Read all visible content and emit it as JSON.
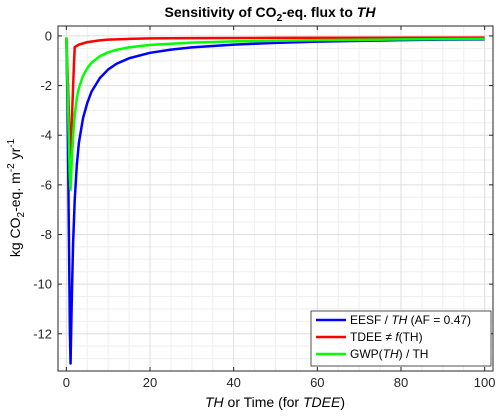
{
  "chart_data": {
    "type": "line",
    "title": "Sensitivity of CO₂-eq. flux to TH",
    "xlabel": "TH or Time (for TDEE)",
    "ylabel": "kg CO₂-eq. m⁻² yr⁻¹",
    "xlim": [
      -2,
      102
    ],
    "ylim": [
      -13.5,
      0.4
    ],
    "x_ticks": [
      0,
      20,
      40,
      60,
      80,
      100
    ],
    "y_ticks": [
      0,
      -2,
      -4,
      -6,
      -8,
      -10,
      -12
    ],
    "grid": true,
    "legend_position": "bottom-right",
    "series": [
      {
        "name": "EESF / TH (AF = 0.47)",
        "color": "#0000ff",
        "points": [
          [
            0,
            -0.1
          ],
          [
            0.3,
            -3.0
          ],
          [
            0.6,
            -8.0
          ],
          [
            0.85,
            -12.0
          ],
          [
            1,
            -13.2
          ],
          [
            1.3,
            -10.6
          ],
          [
            1.6,
            -8.4
          ],
          [
            2,
            -6.6
          ],
          [
            2.5,
            -5.2
          ],
          [
            3,
            -4.3
          ],
          [
            4,
            -3.3
          ],
          [
            5,
            -2.7
          ],
          [
            6,
            -2.25
          ],
          [
            8,
            -1.7
          ],
          [
            10,
            -1.35
          ],
          [
            12,
            -1.12
          ],
          [
            15,
            -0.9
          ],
          [
            20,
            -0.68
          ],
          [
            25,
            -0.55
          ],
          [
            30,
            -0.46
          ],
          [
            40,
            -0.35
          ],
          [
            50,
            -0.28
          ],
          [
            60,
            -0.23
          ],
          [
            70,
            -0.2
          ],
          [
            80,
            -0.17
          ],
          [
            90,
            -0.15
          ],
          [
            100,
            -0.14
          ]
        ]
      },
      {
        "name": "TDEE ≠ f(TH)",
        "color": "#ff0000",
        "points": [
          [
            0,
            -0.1
          ],
          [
            0.4,
            -2.0
          ],
          [
            0.8,
            -4.2
          ],
          [
            1,
            -5.2
          ],
          [
            1.4,
            -3.0
          ],
          [
            1.8,
            -1.2
          ],
          [
            2,
            -0.45
          ],
          [
            3,
            -0.35
          ],
          [
            5,
            -0.25
          ],
          [
            8,
            -0.18
          ],
          [
            10,
            -0.15
          ],
          [
            15,
            -0.12
          ],
          [
            20,
            -0.1
          ],
          [
            30,
            -0.09
          ],
          [
            50,
            -0.08
          ],
          [
            100,
            -0.07
          ]
        ]
      },
      {
        "name": "GWP(TH) / TH",
        "color": "#00ff00",
        "points": [
          [
            0,
            -0.05
          ],
          [
            0.4,
            -2.8
          ],
          [
            0.8,
            -5.6
          ],
          [
            1,
            -6.2
          ],
          [
            1.3,
            -5.0
          ],
          [
            1.7,
            -3.8
          ],
          [
            2,
            -3.2
          ],
          [
            2.5,
            -2.5
          ],
          [
            3,
            -2.1
          ],
          [
            4,
            -1.6
          ],
          [
            5,
            -1.3
          ],
          [
            6,
            -1.08
          ],
          [
            8,
            -0.82
          ],
          [
            10,
            -0.66
          ],
          [
            12,
            -0.56
          ],
          [
            15,
            -0.46
          ],
          [
            20,
            -0.36
          ],
          [
            30,
            -0.27
          ],
          [
            40,
            -0.22
          ],
          [
            60,
            -0.17
          ],
          [
            80,
            -0.14
          ],
          [
            100,
            -0.12
          ]
        ]
      }
    ]
  },
  "title_parts": {
    "main": "Sensitivity of CO",
    "sub": "2",
    "rest": "-eq. flux to ",
    "italic": "TH"
  },
  "xlabel_parts": {
    "italic1": "TH",
    "mid": " or Time (for ",
    "italic2": "TDEE",
    "end": ")"
  },
  "ylabel_parts": {
    "a": "kg CO",
    "sub": "2",
    "b": "-eq. m",
    "sup1": "-2",
    "c": " yr",
    "sup2": "-1"
  },
  "legend_items": [
    {
      "pre": "EESF / ",
      "italic": "TH",
      "post": " (AF = 0.47)"
    },
    {
      "pre": "TDEE ≠ ",
      "italic": "f",
      "post": "(TH)"
    },
    {
      "pre": "GWP(",
      "italic": "TH",
      "post": ") / TH"
    }
  ]
}
